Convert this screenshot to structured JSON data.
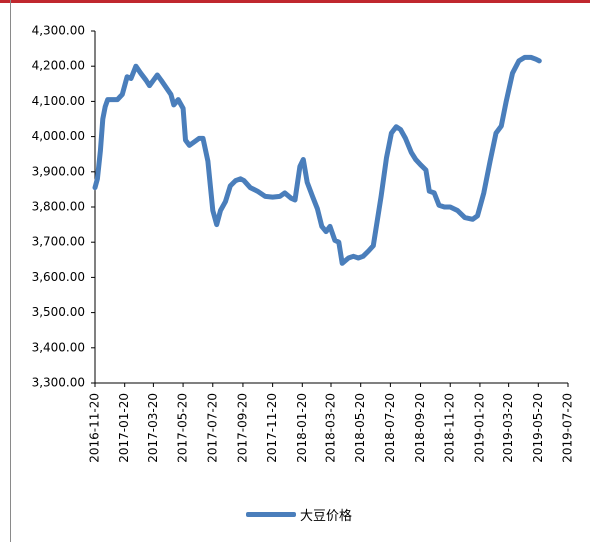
{
  "chart_data": {
    "type": "line",
    "title": "",
    "xlabel": "",
    "ylabel": "",
    "ylim": [
      3300,
      4300
    ],
    "yticks": [
      "4,300.00",
      "4,200.00",
      "4,100.00",
      "4,000.00",
      "3,900.00",
      "3,800.00",
      "3,700.00",
      "3,600.00",
      "3,500.00",
      "3,400.00",
      "3,300.00"
    ],
    "xticks": [
      "2016-11-20",
      "2017-01-20",
      "2017-03-20",
      "2017-05-20",
      "2017-07-20",
      "2017-09-20",
      "2017-11-20",
      "2018-01-20",
      "2018-03-20",
      "2018-05-20",
      "2018-07-20",
      "2018-09-20",
      "2018-11-20",
      "2019-01-20",
      "2019-03-20",
      "2019-05-20",
      "2019-07-20"
    ],
    "grid": false,
    "legend_position": "bottom",
    "series": [
      {
        "name": "大豆价格",
        "color": "#4a7ebb",
        "points": [
          [
            "2016-11-20",
            3855
          ],
          [
            "2016-11-25",
            3880
          ],
          [
            "2016-12-01",
            3960
          ],
          [
            "2016-12-06",
            4050
          ],
          [
            "2016-12-11",
            4085
          ],
          [
            "2016-12-16",
            4105
          ],
          [
            "2016-12-22",
            4105
          ],
          [
            "2016-12-27",
            4105
          ],
          [
            "2017-01-05",
            4105
          ],
          [
            "2017-01-15",
            4120
          ],
          [
            "2017-01-25",
            4170
          ],
          [
            "2017-02-02",
            4165
          ],
          [
            "2017-02-12",
            4200
          ],
          [
            "2017-02-22",
            4180
          ],
          [
            "2017-03-05",
            4160
          ],
          [
            "2017-03-12",
            4145
          ],
          [
            "2017-03-20",
            4160
          ],
          [
            "2017-03-28",
            4175
          ],
          [
            "2017-04-05",
            4160
          ],
          [
            "2017-04-15",
            4140
          ],
          [
            "2017-04-25",
            4120
          ],
          [
            "2017-05-01",
            4090
          ],
          [
            "2017-05-10",
            4105
          ],
          [
            "2017-05-20",
            4080
          ],
          [
            "2017-05-25",
            3990
          ],
          [
            "2017-06-02",
            3975
          ],
          [
            "2017-06-12",
            3985
          ],
          [
            "2017-06-22",
            3995
          ],
          [
            "2017-06-30",
            3995
          ],
          [
            "2017-07-10",
            3930
          ],
          [
            "2017-07-20",
            3790
          ],
          [
            "2017-07-28",
            3750
          ],
          [
            "2017-08-05",
            3790
          ],
          [
            "2017-08-15",
            3815
          ],
          [
            "2017-08-25",
            3860
          ],
          [
            "2017-09-05",
            3875
          ],
          [
            "2017-09-15",
            3880
          ],
          [
            "2017-09-22",
            3875
          ],
          [
            "2017-10-05",
            3855
          ],
          [
            "2017-10-20",
            3845
          ],
          [
            "2017-11-05",
            3830
          ],
          [
            "2017-11-20",
            3828
          ],
          [
            "2017-12-05",
            3830
          ],
          [
            "2017-12-15",
            3840
          ],
          [
            "2017-12-28",
            3825
          ],
          [
            "2018-01-05",
            3820
          ],
          [
            "2018-01-15",
            3915
          ],
          [
            "2018-01-22",
            3935
          ],
          [
            "2018-01-30",
            3870
          ],
          [
            "2018-02-10",
            3830
          ],
          [
            "2018-02-20",
            3795
          ],
          [
            "2018-03-01",
            3745
          ],
          [
            "2018-03-10",
            3730
          ],
          [
            "2018-03-18",
            3745
          ],
          [
            "2018-03-28",
            3705
          ],
          [
            "2018-04-05",
            3700
          ],
          [
            "2018-04-12",
            3640
          ],
          [
            "2018-04-25",
            3655
          ],
          [
            "2018-05-05",
            3660
          ],
          [
            "2018-05-15",
            3655
          ],
          [
            "2018-05-25",
            3660
          ],
          [
            "2018-06-05",
            3675
          ],
          [
            "2018-06-15",
            3690
          ],
          [
            "2018-07-01",
            3830
          ],
          [
            "2018-07-12",
            3940
          ],
          [
            "2018-07-22",
            4010
          ],
          [
            "2018-08-01",
            4028
          ],
          [
            "2018-08-10",
            4020
          ],
          [
            "2018-08-20",
            3995
          ],
          [
            "2018-09-01",
            3955
          ],
          [
            "2018-09-10",
            3935
          ],
          [
            "2018-09-20",
            3920
          ],
          [
            "2018-10-01",
            3905
          ],
          [
            "2018-10-08",
            3845
          ],
          [
            "2018-10-18",
            3840
          ],
          [
            "2018-10-28",
            3805
          ],
          [
            "2018-11-08",
            3800
          ],
          [
            "2018-11-20",
            3800
          ],
          [
            "2018-12-05",
            3790
          ],
          [
            "2018-12-20",
            3770
          ],
          [
            "2019-01-05",
            3765
          ],
          [
            "2019-01-15",
            3775
          ],
          [
            "2019-01-28",
            3840
          ],
          [
            "2019-02-10",
            3930
          ],
          [
            "2019-02-22",
            4010
          ],
          [
            "2019-03-05",
            4030
          ],
          [
            "2019-03-15",
            4100
          ],
          [
            "2019-03-28",
            4180
          ],
          [
            "2019-04-10",
            4215
          ],
          [
            "2019-04-22",
            4225
          ],
          [
            "2019-05-05",
            4225
          ],
          [
            "2019-05-15",
            4220
          ],
          [
            "2019-05-22",
            4215
          ]
        ]
      }
    ]
  },
  "legend": {
    "label": "大豆价格"
  }
}
